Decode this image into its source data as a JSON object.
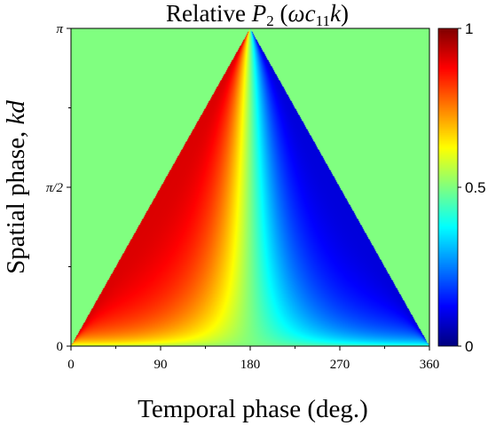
{
  "chart_data": {
    "type": "heatmap",
    "title_prefix": "Relative ",
    "title_var": "P",
    "title_sub": "2",
    "title_suffix_open": "  (",
    "title_omega": "ω",
    "title_c": "c",
    "title_c_sub": "11",
    "title_k": "k",
    "title_suffix_close": ")",
    "xlabel": "Temporal phase (deg.)",
    "ylabel_text": "Spatial phase, ",
    "ylabel_var": "kd",
    "x_ticks": [
      "0",
      "90",
      "180",
      "270",
      "360"
    ],
    "x_tick_values": [
      0,
      90,
      180,
      270,
      360
    ],
    "xlim": [
      0,
      360
    ],
    "y_ticks": [
      "0",
      "π/2",
      "π"
    ],
    "y_tick_values": [
      0,
      0.5,
      1
    ],
    "ylim": [
      0,
      1
    ],
    "y_unit": "π",
    "colorbar": {
      "ticks": [
        "0",
        "0.5",
        "1"
      ],
      "tick_values": [
        0,
        0.5,
        1
      ],
      "range": [
        0,
        1
      ],
      "colormap": "jet"
    },
    "field_description": "peak red ~1 near (100°, 0.5π); peak blue ~0 near (280°, 0.5π); 0.5 along x=0, x=180, x=360 and y=π"
  }
}
